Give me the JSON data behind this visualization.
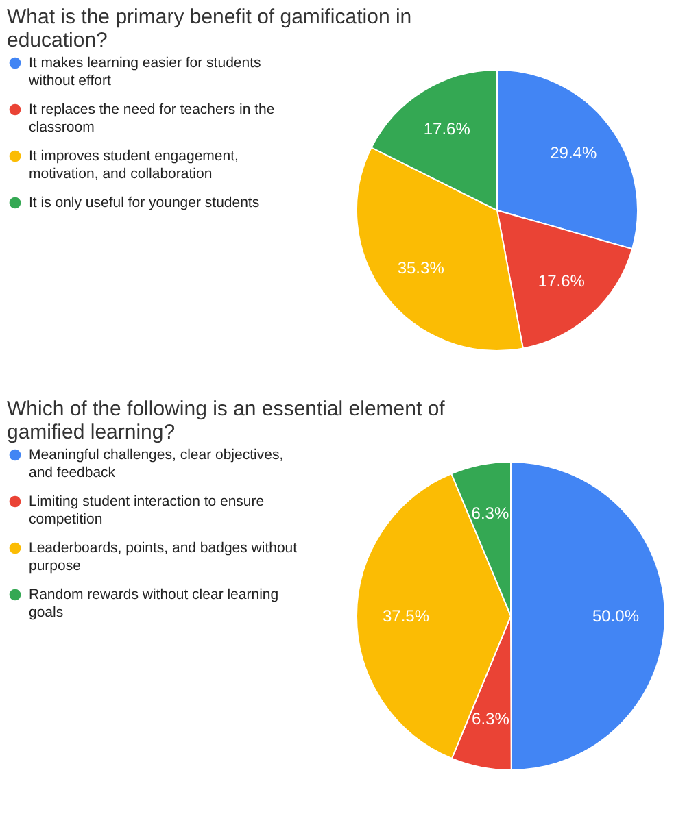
{
  "chart_data": [
    {
      "type": "pie",
      "title": "What is the primary benefit of gamification in education?",
      "categories": [
        "It makes learning easier for students without effort",
        "It replaces the need for teachers in the classroom",
        "It improves student engagement, motivation, and collaboration",
        "It is only useful for younger students"
      ],
      "values": [
        29.4,
        17.6,
        35.3,
        17.6
      ],
      "value_labels": [
        "29.4%",
        "17.6%",
        "35.3%",
        "17.6%"
      ],
      "colors": [
        "#4285f4",
        "#ea4335",
        "#fbbc04",
        "#34a853"
      ],
      "legend": "left"
    },
    {
      "type": "pie",
      "title": "Which of the following is an essential element of gamified learning?",
      "categories": [
        "Meaningful challenges, clear objectives, and feedback",
        "Limiting student interaction to ensure competition",
        "Leaderboards, points, and badges without purpose",
        "Random rewards without clear learning goals"
      ],
      "values": [
        50.0,
        6.3,
        37.5,
        6.3
      ],
      "value_labels": [
        "50.0%",
        "6.3%",
        "37.5%",
        "6.3%"
      ],
      "colors": [
        "#4285f4",
        "#ea4335",
        "#fbbc04",
        "#34a853"
      ],
      "legend": "left"
    }
  ]
}
